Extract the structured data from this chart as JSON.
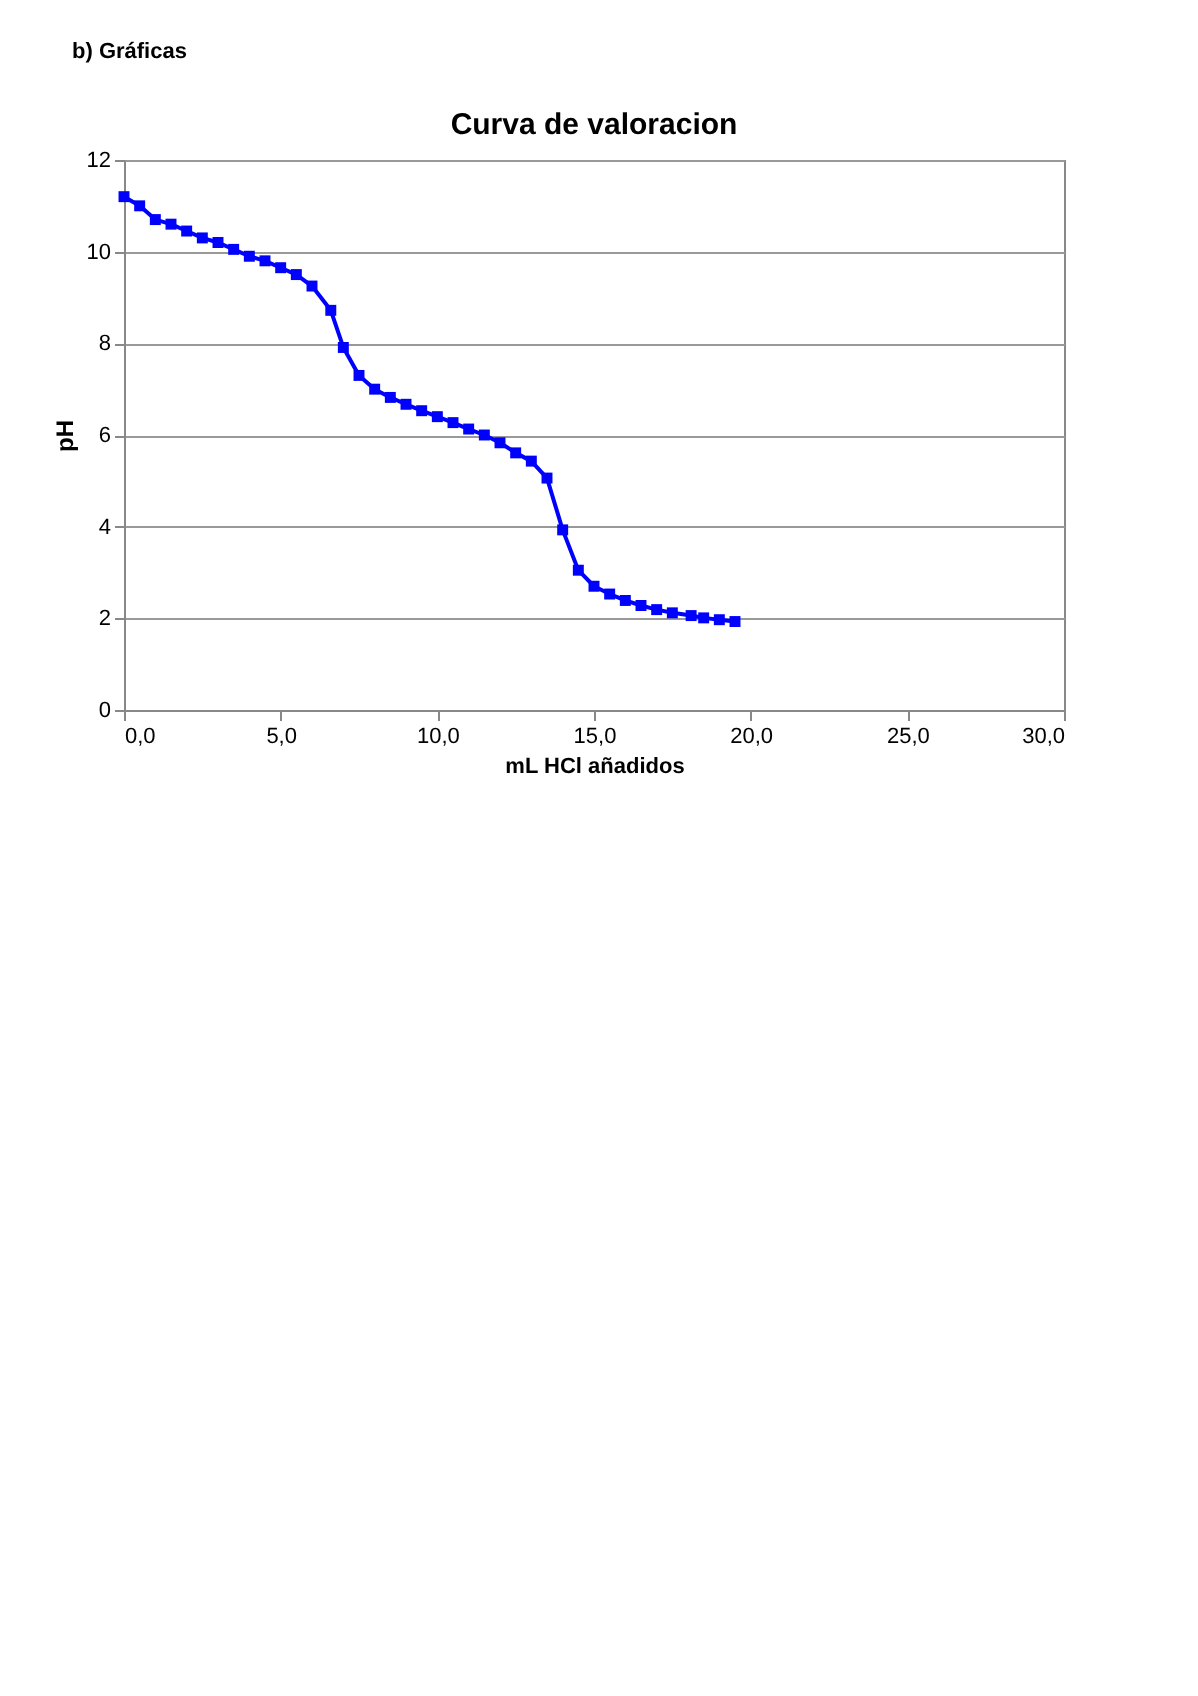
{
  "chart_data": {
    "type": "line",
    "title": "Curva de valoracion",
    "subtitle": "b) Gráficas",
    "xlabel": "mL HCl añadidos",
    "ylabel": "pH",
    "x": [
      0,
      0.5,
      1.0,
      1.5,
      2.0,
      2.5,
      3.0,
      3.5,
      4.0,
      4.5,
      5.0,
      5.5,
      6.0,
      6.6,
      7.0,
      7.5,
      8.0,
      8.5,
      9.0,
      9.5,
      10.0,
      10.5,
      11.0,
      11.5,
      12.0,
      12.5,
      13.0,
      13.5,
      14.0,
      14.5,
      15.0,
      15.5,
      16.0,
      16.5,
      17.0,
      17.5,
      18.1,
      18.5,
      19.0,
      19.5
    ],
    "series": [
      {
        "color": "#0000ff",
        "values": [
          11.2,
          11.0,
          10.7,
          10.6,
          10.45,
          10.3,
          10.2,
          10.05,
          9.9,
          9.8,
          9.65,
          9.5,
          9.25,
          8.72,
          7.91,
          7.3,
          7.0,
          6.82,
          6.67,
          6.53,
          6.4,
          6.27,
          6.13,
          6.0,
          5.83,
          5.61,
          5.43,
          5.06,
          3.93,
          3.05,
          2.7,
          2.53,
          2.39,
          2.28,
          2.19,
          2.12,
          2.06,
          2.01,
          1.97,
          1.93
        ]
      }
    ],
    "xlim": [
      0,
      30
    ],
    "xticks": [
      {
        "value": 0,
        "label": "0,0"
      },
      {
        "value": 5,
        "label": "5,0"
      },
      {
        "value": 10,
        "label": "10,0"
      },
      {
        "value": 15,
        "label": "15,0"
      },
      {
        "value": 20,
        "label": "20,0"
      },
      {
        "value": 25,
        "label": "25,0"
      },
      {
        "value": 30,
        "label": "30,0"
      }
    ],
    "ylim": [
      0,
      12
    ],
    "yticks": [
      0,
      2,
      4,
      6,
      8,
      10,
      12
    ],
    "grid": "y",
    "marker": "square",
    "line_style": "solid"
  }
}
